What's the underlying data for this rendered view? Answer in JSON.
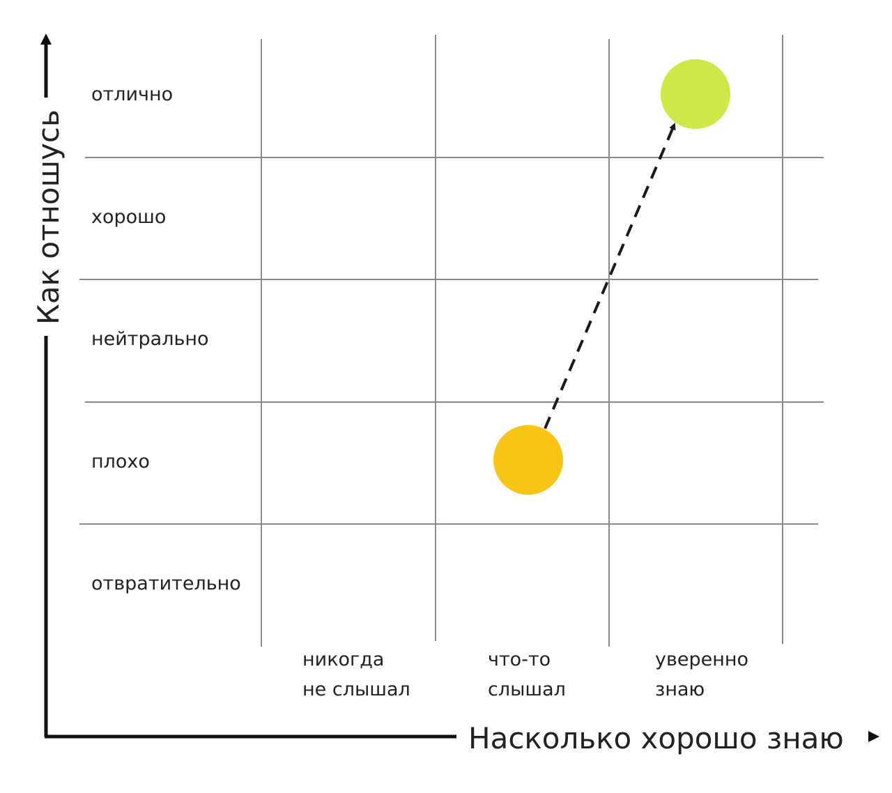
{
  "axes": {
    "x_title": "Насколько хорошо знаю",
    "y_title": "Как отношусь"
  },
  "rows": [
    "отлично",
    "хорошо",
    "нейтрально",
    "плохо",
    "отвратительно"
  ],
  "columns": [
    [
      "никогда",
      "не слышал"
    ],
    [
      "что-то",
      "слышал"
    ],
    [
      "уверенно",
      "знаю"
    ]
  ],
  "points": [
    {
      "id": "start",
      "column": 2,
      "row": 4,
      "color": "#f8c516"
    },
    {
      "id": "end",
      "column": 3,
      "row": 1,
      "color": "#cde849"
    }
  ],
  "arrow": {
    "from": "start",
    "to": "end",
    "style": "dashed",
    "color": "#1a1a1a"
  },
  "colors": {
    "grid": "#8a8a8a",
    "axis": "#111111",
    "text": "#222222"
  }
}
